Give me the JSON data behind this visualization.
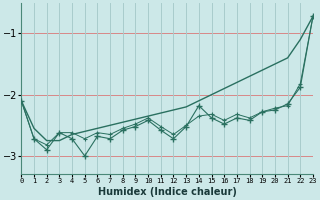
{
  "xlabel": "Humidex (Indice chaleur)",
  "background_color": "#cce8e8",
  "grid_color_major": "#f0b8b8",
  "grid_color_minor": "#b8d8d8",
  "line_color": "#2a7060",
  "x_values": [
    0,
    1,
    2,
    3,
    4,
    5,
    6,
    7,
    8,
    9,
    10,
    11,
    12,
    13,
    14,
    15,
    16,
    17,
    18,
    19,
    20,
    21,
    22,
    23
  ],
  "smooth_y": [
    -2.1,
    -2.55,
    -2.75,
    -2.75,
    -2.65,
    -2.6,
    -2.55,
    -2.5,
    -2.45,
    -2.4,
    -2.35,
    -2.3,
    -2.25,
    -2.2,
    -2.1,
    -2.0,
    -1.9,
    -1.8,
    -1.7,
    -1.6,
    -1.5,
    -1.4,
    -1.1,
    -0.72
  ],
  "jagged_y": [
    -2.1,
    -2.72,
    -2.9,
    -2.62,
    -2.72,
    -3.0,
    -2.68,
    -2.72,
    -2.58,
    -2.52,
    -2.42,
    -2.58,
    -2.72,
    -2.52,
    -2.18,
    -2.38,
    -2.48,
    -2.38,
    -2.42,
    -2.28,
    -2.25,
    -2.15,
    -1.88,
    -0.72
  ],
  "jagged2_y": [
    -2.1,
    -2.72,
    -2.82,
    -2.62,
    -2.62,
    -2.72,
    -2.62,
    -2.65,
    -2.55,
    -2.48,
    -2.38,
    -2.52,
    -2.65,
    -2.5,
    -2.35,
    -2.32,
    -2.42,
    -2.32,
    -2.38,
    -2.28,
    -2.22,
    -2.18,
    -1.82,
    -0.72
  ],
  "ylim": [
    -3.3,
    -0.5
  ],
  "yticks": [
    -3,
    -2,
    -1
  ],
  "xlim": [
    0,
    23
  ]
}
